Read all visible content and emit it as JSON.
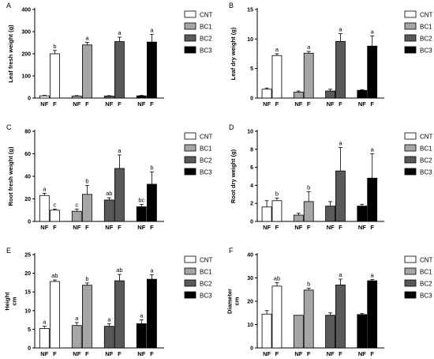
{
  "series_names": [
    "CNT",
    "BC1",
    "BC2",
    "BC3"
  ],
  "colors": {
    "CNT": "#ffffff",
    "BC1": "#a6a6a6",
    "BC2": "#595959",
    "BC3": "#000000",
    "stroke": "#000000"
  },
  "chart_data": [
    {
      "type": "bar",
      "panel": "A",
      "ylabel": "Leaf fresh weight (g)",
      "ylim": [
        0,
        400
      ],
      "yticks": [
        0,
        100,
        200,
        300,
        400
      ],
      "categories": [
        "NF",
        "F"
      ],
      "series": [
        {
          "name": "CNT",
          "values": [
            10,
            200
          ],
          "errors": [
            2,
            15
          ],
          "letters": [
            "",
            "b"
          ]
        },
        {
          "name": "BC1",
          "values": [
            9,
            240
          ],
          "errors": [
            2,
            12
          ],
          "letters": [
            "",
            "a"
          ]
        },
        {
          "name": "BC2",
          "values": [
            9,
            255
          ],
          "errors": [
            2,
            20
          ],
          "letters": [
            "",
            "a"
          ]
        },
        {
          "name": "BC3",
          "values": [
            10,
            253
          ],
          "errors": [
            2,
            35
          ],
          "letters": [
            "",
            "a"
          ]
        }
      ]
    },
    {
      "type": "bar",
      "panel": "B",
      "ylabel": "Leaf dry weight (g)",
      "ylim": [
        0,
        15
      ],
      "yticks": [
        0,
        5,
        10,
        15
      ],
      "categories": [
        "NF",
        "F"
      ],
      "series": [
        {
          "name": "CNT",
          "values": [
            1.5,
            7.2
          ],
          "errors": [
            0.2,
            0.3
          ],
          "letters": [
            "",
            "a"
          ]
        },
        {
          "name": "BC1",
          "values": [
            1.0,
            7.6
          ],
          "errors": [
            0.2,
            0.3
          ],
          "letters": [
            "",
            "a"
          ]
        },
        {
          "name": "BC2",
          "values": [
            1.2,
            9.6
          ],
          "errors": [
            0.3,
            1.3
          ],
          "letters": [
            "",
            "a"
          ]
        },
        {
          "name": "BC3",
          "values": [
            1.3,
            8.8
          ],
          "errors": [
            0.1,
            1.7
          ],
          "letters": [
            "",
            "a"
          ]
        }
      ]
    },
    {
      "type": "bar",
      "panel": "C",
      "ylabel": "Root fresh weight (g)",
      "ylim": [
        0,
        80
      ],
      "yticks": [
        0,
        20,
        40,
        60,
        80
      ],
      "categories": [
        "NF",
        "F"
      ],
      "series": [
        {
          "name": "CNT",
          "values": [
            23,
            10
          ],
          "errors": [
            2,
            1
          ],
          "letters": [
            "a",
            "c"
          ]
        },
        {
          "name": "BC1",
          "values": [
            9,
            24
          ],
          "errors": [
            2,
            8
          ],
          "letters": [
            "c",
            "b"
          ]
        },
        {
          "name": "BC2",
          "values": [
            19,
            47
          ],
          "errors": [
            2,
            12
          ],
          "letters": [
            "ab",
            "a"
          ]
        },
        {
          "name": "BC3",
          "values": [
            13,
            33
          ],
          "errors": [
            2,
            11
          ],
          "letters": [
            "bc",
            "b"
          ]
        }
      ]
    },
    {
      "type": "bar",
      "panel": "D",
      "ylabel": "Root dry weight (g)",
      "ylim": [
        0,
        10
      ],
      "yticks": [
        0,
        2,
        4,
        6,
        8,
        10
      ],
      "categories": [
        "NF",
        "F"
      ],
      "series": [
        {
          "name": "CNT",
          "values": [
            1.6,
            2.3
          ],
          "errors": [
            0.7,
            0.3
          ],
          "letters": [
            "",
            "b"
          ]
        },
        {
          "name": "BC1",
          "values": [
            0.7,
            2.2
          ],
          "errors": [
            0.2,
            1.1
          ],
          "letters": [
            "",
            "b"
          ]
        },
        {
          "name": "BC2",
          "values": [
            1.7,
            5.6
          ],
          "errors": [
            0.5,
            2.6
          ],
          "letters": [
            "",
            "a"
          ]
        },
        {
          "name": "BC3",
          "values": [
            1.7,
            4.8
          ],
          "errors": [
            0.2,
            2.7
          ],
          "letters": [
            "",
            "a"
          ]
        }
      ]
    },
    {
      "type": "bar",
      "panel": "E",
      "ylabel": "Height\ncm",
      "ylim": [
        0,
        25
      ],
      "yticks": [
        0,
        5,
        10,
        15,
        20,
        25
      ],
      "categories": [
        "NF",
        "F"
      ],
      "series": [
        {
          "name": "CNT",
          "values": [
            5.2,
            17.8
          ],
          "errors": [
            0.6,
            0.4
          ],
          "letters": [
            "a",
            "ab"
          ]
        },
        {
          "name": "BC1",
          "values": [
            6.0,
            16.8
          ],
          "errors": [
            0.8,
            0.6
          ],
          "letters": [
            "a",
            "b"
          ]
        },
        {
          "name": "BC2",
          "values": [
            5.8,
            18.0
          ],
          "errors": [
            0.7,
            1.7
          ],
          "letters": [
            "a",
            "ab"
          ]
        },
        {
          "name": "BC3",
          "values": [
            6.5,
            18.4
          ],
          "errors": [
            1.0,
            1.2
          ],
          "letters": [
            "a",
            "a"
          ]
        }
      ]
    },
    {
      "type": "bar",
      "panel": "F",
      "ylabel": "Diameter\ncm",
      "ylim": [
        0,
        40
      ],
      "yticks": [
        0,
        10,
        20,
        30,
        40
      ],
      "categories": [
        "NF",
        "F"
      ],
      "series": [
        {
          "name": "CNT",
          "values": [
            14.5,
            26.5
          ],
          "errors": [
            1.5,
            1.5
          ],
          "letters": [
            "",
            "ab"
          ]
        },
        {
          "name": "BC1",
          "values": [
            14.0,
            24.8
          ],
          "errors": [
            0,
            0.8
          ],
          "letters": [
            "",
            "b"
          ]
        },
        {
          "name": "BC2",
          "values": [
            14.0,
            27.0
          ],
          "errors": [
            1.0,
            2.5
          ],
          "letters": [
            "",
            "a"
          ]
        },
        {
          "name": "BC3",
          "values": [
            14.3,
            28.8
          ],
          "errors": [
            0.5,
            0.5
          ],
          "letters": [
            "",
            "a"
          ]
        }
      ]
    }
  ]
}
